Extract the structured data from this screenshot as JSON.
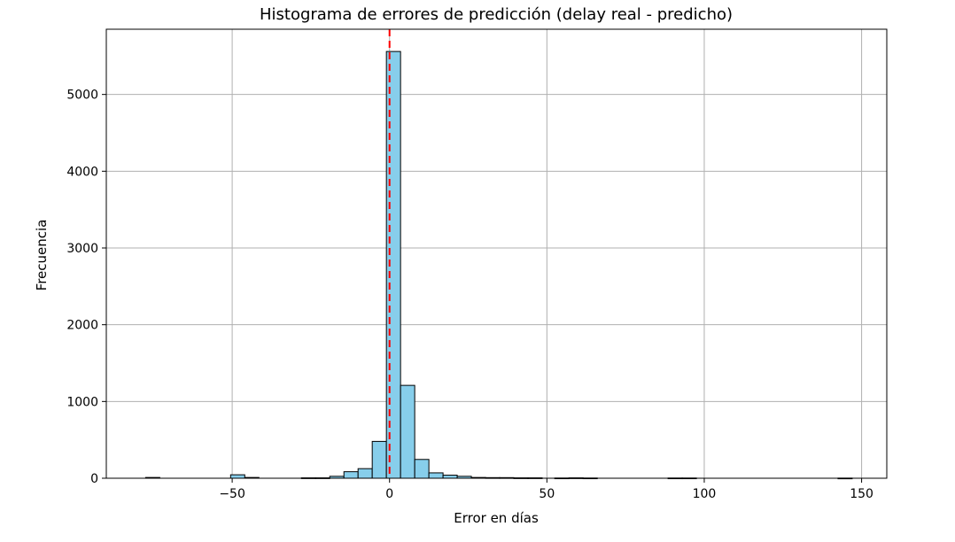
{
  "chart_data": {
    "type": "bar",
    "title": "Histograma de errores de predicción (delay real - predicho)",
    "xlabel": "Error en días",
    "ylabel": "Frecuencia",
    "xlim": [
      -90,
      158
    ],
    "ylim": [
      0,
      5850
    ],
    "xticks": [
      -50,
      0,
      50,
      100,
      150
    ],
    "xtick_labels": [
      "−50",
      "0",
      "50",
      "100",
      "150"
    ],
    "yticks": [
      0,
      1000,
      2000,
      3000,
      4000,
      5000
    ],
    "ytick_labels": [
      "0",
      "1000",
      "2000",
      "3000",
      "4000",
      "5000"
    ],
    "grid": true,
    "bar_color": "#87ceeb",
    "bar_edge_color": "#000000",
    "reference_line": {
      "x": 0,
      "color": "#ff0000",
      "style": "dashed"
    },
    "bins": [
      {
        "x0": -77.5,
        "x1": -73.0,
        "count": 10
      },
      {
        "x0": -50.5,
        "x1": -46.0,
        "count": 45
      },
      {
        "x0": -46.0,
        "x1": -41.5,
        "count": 10
      },
      {
        "x0": -28.0,
        "x1": -23.5,
        "count": 5
      },
      {
        "x0": -23.5,
        "x1": -19.0,
        "count": 5
      },
      {
        "x0": -19.0,
        "x1": -14.5,
        "count": 25
      },
      {
        "x0": -14.5,
        "x1": -10.0,
        "count": 85
      },
      {
        "x0": -10.0,
        "x1": -5.5,
        "count": 125
      },
      {
        "x0": -5.5,
        "x1": -1.0,
        "count": 480
      },
      {
        "x0": -1.0,
        "x1": 3.5,
        "count": 5560
      },
      {
        "x0": 3.5,
        "x1": 8.0,
        "count": 1210
      },
      {
        "x0": 8.0,
        "x1": 12.5,
        "count": 245
      },
      {
        "x0": 12.5,
        "x1": 17.0,
        "count": 70
      },
      {
        "x0": 17.0,
        "x1": 21.5,
        "count": 40
      },
      {
        "x0": 21.5,
        "x1": 26.0,
        "count": 25
      },
      {
        "x0": 26.0,
        "x1": 30.5,
        "count": 10
      },
      {
        "x0": 30.5,
        "x1": 35.0,
        "count": 8
      },
      {
        "x0": 35.0,
        "x1": 39.5,
        "count": 8
      },
      {
        "x0": 39.5,
        "x1": 44.0,
        "count": 5
      },
      {
        "x0": 44.0,
        "x1": 48.5,
        "count": 5
      },
      {
        "x0": 52.5,
        "x1": 57.0,
        "count": 3
      },
      {
        "x0": 57.0,
        "x1": 61.5,
        "count": 5
      },
      {
        "x0": 61.5,
        "x1": 66.0,
        "count": 3
      },
      {
        "x0": 88.5,
        "x1": 93.0,
        "count": 3
      },
      {
        "x0": 93.0,
        "x1": 97.5,
        "count": 3
      },
      {
        "x0": 142.5,
        "x1": 147.0,
        "count": 2
      }
    ]
  }
}
